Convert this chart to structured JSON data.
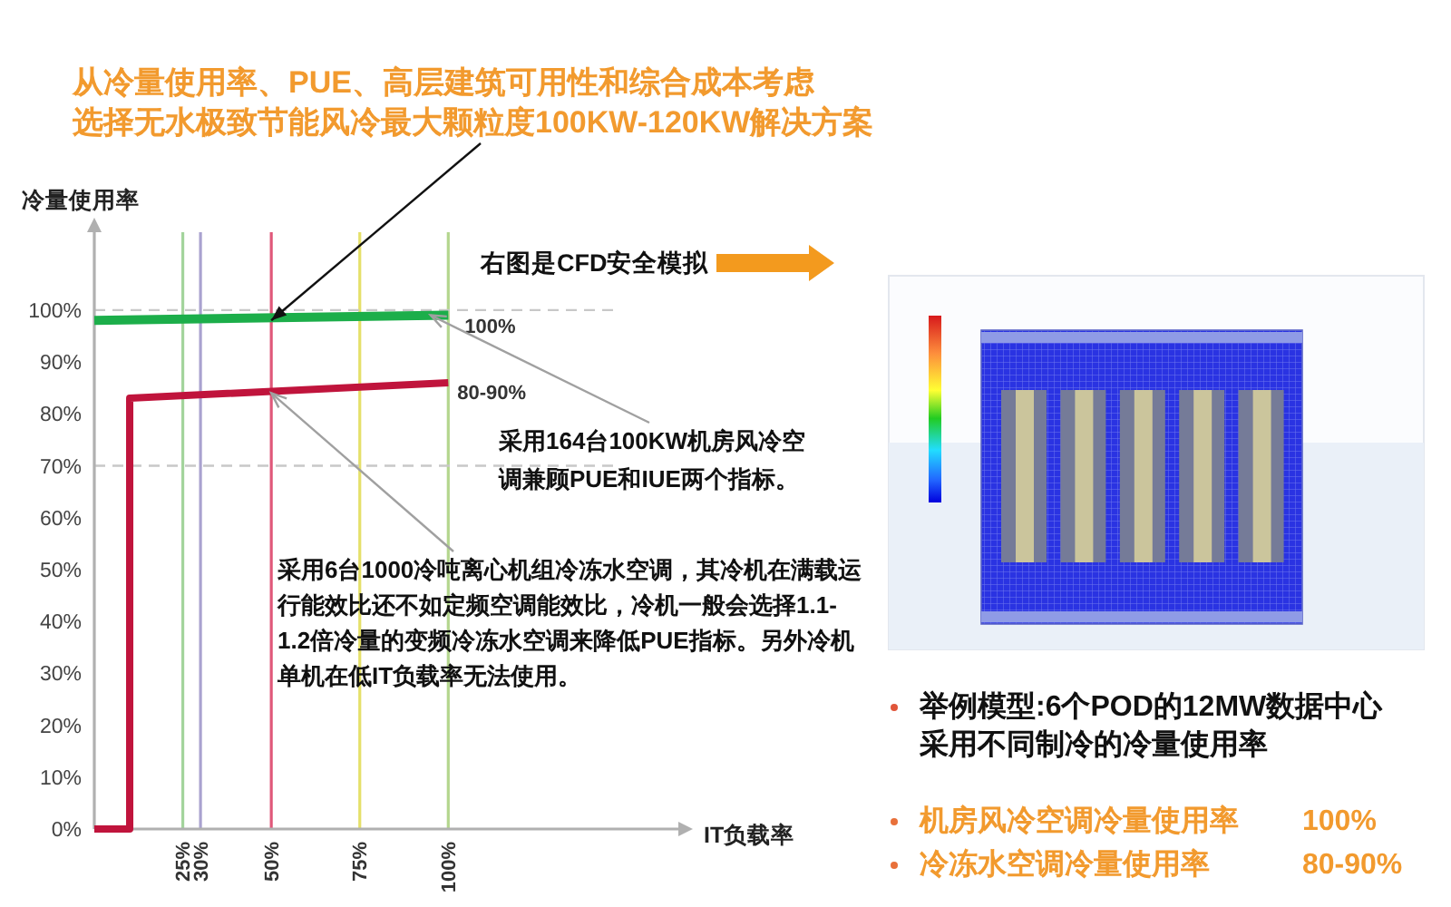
{
  "chart_data": {
    "type": "line",
    "xlabel": "IT负载率",
    "ylabel": "冷量使用率",
    "xlim": [
      0,
      165
    ],
    "xticks": [
      {
        "value": 25,
        "label": "25%"
      },
      {
        "value": 30,
        "label": "30%"
      },
      {
        "value": 50,
        "label": "50%"
      },
      {
        "value": 75,
        "label": "75%"
      },
      {
        "value": 100,
        "label": "100%"
      }
    ],
    "ylim": [
      0,
      115
    ],
    "yticks": [
      {
        "value": 0,
        "label": "0%"
      },
      {
        "value": 10,
        "label": "10%"
      },
      {
        "value": 20,
        "label": "20%"
      },
      {
        "value": 30,
        "label": "30%"
      },
      {
        "value": 40,
        "label": "40%"
      },
      {
        "value": 50,
        "label": "50%"
      },
      {
        "value": 60,
        "label": "60%"
      },
      {
        "value": 70,
        "label": "70%"
      },
      {
        "value": 80,
        "label": "80%"
      },
      {
        "value": 90,
        "label": "90%"
      },
      {
        "value": 100,
        "label": "100%"
      }
    ],
    "series": [
      {
        "color": "#1cae4a",
        "x": [
          0,
          100
        ],
        "values": [
          98,
          99
        ]
      },
      {
        "color": "#c0143c",
        "x": [
          0,
          10,
          10,
          100
        ],
        "values": [
          0,
          0,
          83,
          86
        ]
      }
    ],
    "ref_lines": [
      {
        "axis": "x",
        "value": 25,
        "color": "#a3d49c"
      },
      {
        "axis": "x",
        "value": 30,
        "color": "#a9a2cf"
      },
      {
        "axis": "x",
        "value": 50,
        "color": "#e0587a"
      },
      {
        "axis": "x",
        "value": 75,
        "color": "#e5e06a"
      },
      {
        "axis": "x",
        "value": 100,
        "color": "#b4d68e"
      },
      {
        "axis": "y",
        "value": 100,
        "color": "#c8c8c8",
        "line_style": "dashed"
      },
      {
        "axis": "y",
        "value": 70,
        "color": "#c8c8c8",
        "line_style": "dashed"
      }
    ],
    "annotations": [
      {
        "text": "从冷量使用率、PUE、高层建筑可用性和综合成本考虑选择无水极致节能风冷最大颗粒度100KW-120KW解决方案",
        "x": 50,
        "y": 98
      },
      {
        "text": "100%",
        "x": 100,
        "y": 99
      },
      {
        "text": "80-90%",
        "x": 100,
        "y": 86
      },
      {
        "text": "采用164台100KW机房风冷空调兼顾PUE和IUE两个指标。",
        "x": 95,
        "y": 99
      },
      {
        "text": "采用6台1000冷吨离心机组冷冻水空调，其冷机在满载运行能效比还不如定频空调能效比，冷机一般会选择1.1-1.2倍冷量的变频冷冻水空调来降低PUE指标。另外冷机单机在低IT负载率无法使用。",
        "x": 50,
        "y": 84
      },
      "右图是CFD安全模拟",
      "举例模型:6个POD的12MW数据中心采用不同制冷的冷量使用率",
      "机房风冷空调冷量使用率    100%",
      "冷冻水空调冷量使用率    80-90%"
    ]
  }
}
